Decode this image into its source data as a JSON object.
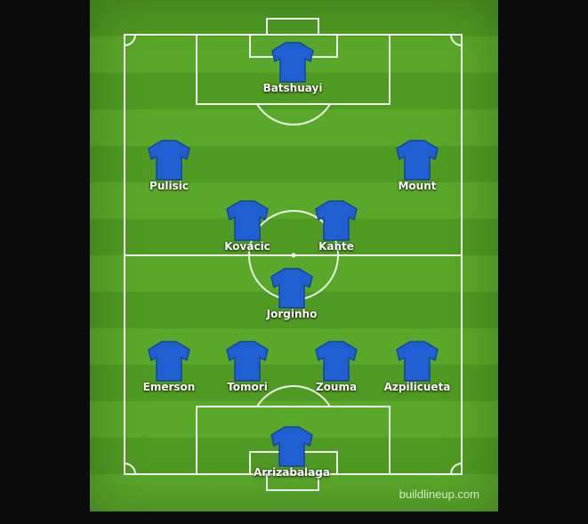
{
  "colors": {
    "shirt": "#1f5fd1",
    "shirt_dark": "#14459e",
    "line": "#ffffff"
  },
  "players": [
    {
      "name": "Batshuayi"
    },
    {
      "name": "Pulisic"
    },
    {
      "name": "Mount"
    },
    {
      "name": "Kovacic"
    },
    {
      "name": "Kante"
    },
    {
      "name": "Jorginho"
    },
    {
      "name": "Emerson"
    },
    {
      "name": "Tomori"
    },
    {
      "name": "Zouma"
    },
    {
      "name": "Azpilicueta"
    },
    {
      "name": "Arrizabalaga"
    }
  ],
  "watermark": "buildlineup.com"
}
